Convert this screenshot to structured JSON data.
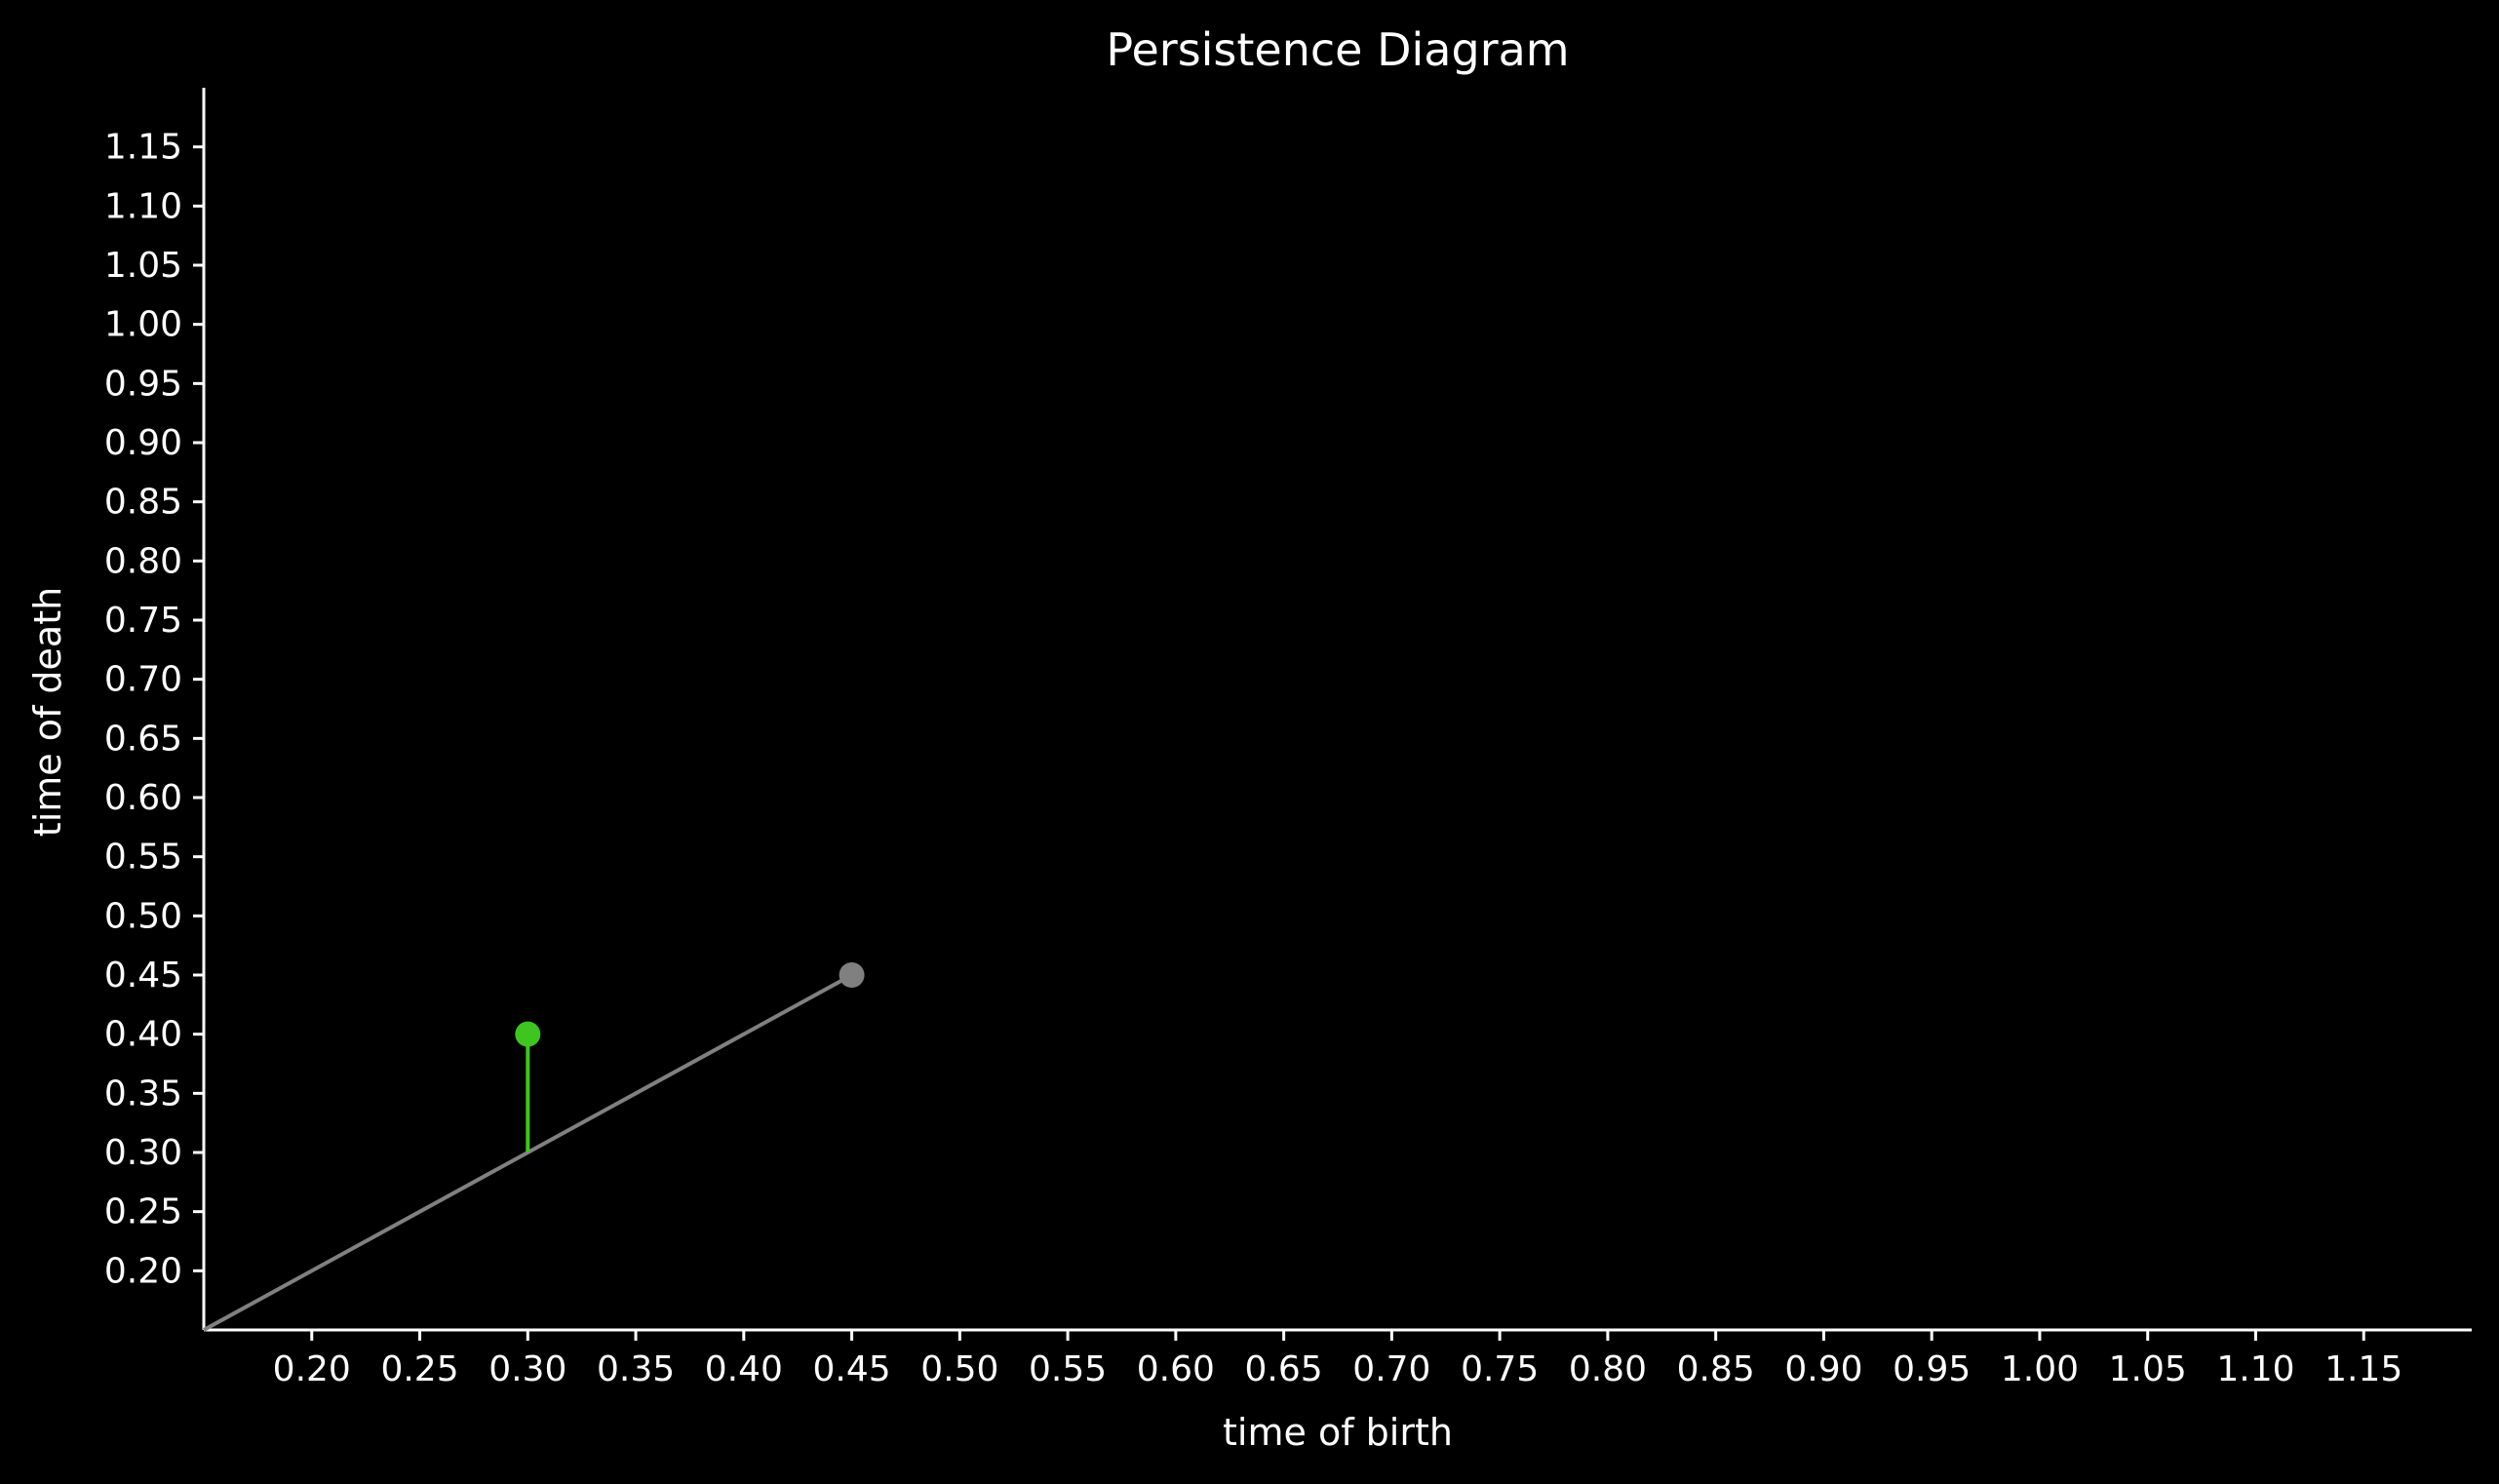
{
  "chart_data": {
    "type": "scatter",
    "title": "Persistence Diagram",
    "xlabel": "time of birth",
    "ylabel": "time of death",
    "xlim": [
      0.15,
      1.2
    ],
    "ylim": [
      0.15,
      1.2
    ],
    "xticks": [
      "0.20",
      "0.25",
      "0.30",
      "0.35",
      "0.40",
      "0.45",
      "0.50",
      "0.55",
      "0.60",
      "0.65",
      "0.70",
      "0.75",
      "0.80",
      "0.85",
      "0.90",
      "0.95",
      "1.00",
      "1.05",
      "1.10",
      "1.15"
    ],
    "yticks": [
      "0.20",
      "0.25",
      "0.30",
      "0.35",
      "0.40",
      "0.45",
      "0.50",
      "0.55",
      "0.60",
      "0.65",
      "0.70",
      "0.75",
      "0.80",
      "0.85",
      "0.90",
      "0.95",
      "1.00",
      "1.05",
      "1.10",
      "1.15"
    ],
    "grid": false,
    "background_color": "#000000",
    "axis_color": "#ffffff",
    "diagonal": {
      "from": [
        0.15,
        0.15
      ],
      "to": [
        0.45,
        0.45
      ],
      "color": "#808080"
    },
    "series": [
      {
        "points": [
          {
            "birth": 0.3,
            "death": 0.4,
            "color": "#3ec51f",
            "stem_to_diagonal": true
          },
          {
            "birth": 0.45,
            "death": 0.45,
            "color": "#808080",
            "stem_to_diagonal": false
          }
        ]
      }
    ]
  }
}
